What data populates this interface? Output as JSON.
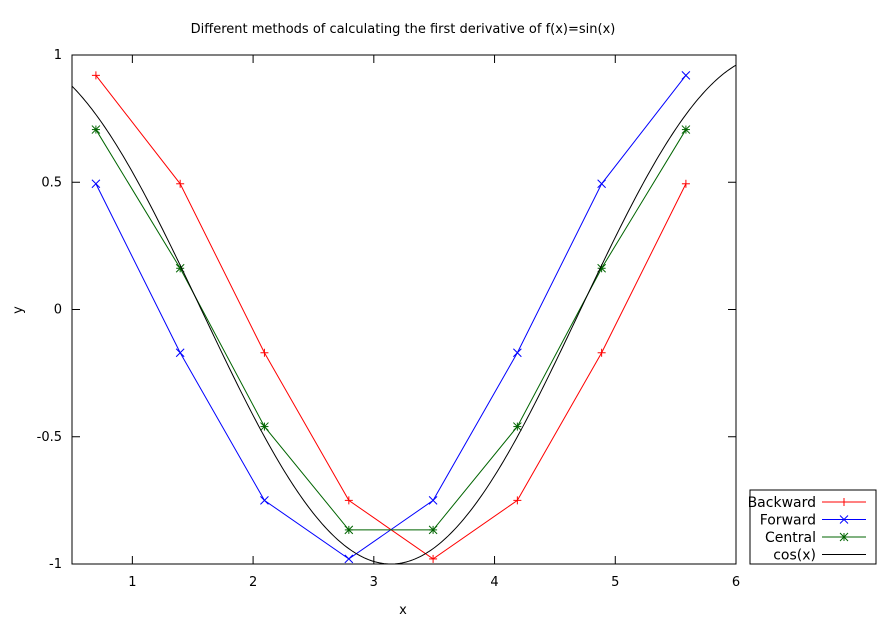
{
  "chart_data": {
    "type": "line",
    "title": "Different methods of calculating the first derivative of f(x)=sin(x)",
    "xlabel": "x",
    "ylabel": "y",
    "xlim": [
      0.5,
      6
    ],
    "ylim": [
      -1,
      1
    ],
    "x_ticks": [
      {
        "value": 1,
        "label": "1"
      },
      {
        "value": 2,
        "label": "2"
      },
      {
        "value": 3,
        "label": "3"
      },
      {
        "value": 4,
        "label": "4"
      },
      {
        "value": 5,
        "label": "5"
      },
      {
        "value": 6,
        "label": "6"
      }
    ],
    "y_ticks": [
      {
        "value": -1,
        "label": "-1"
      },
      {
        "value": -0.5,
        "label": "-0.5"
      },
      {
        "value": 0,
        "label": "0"
      },
      {
        "value": 0.5,
        "label": "0.5"
      },
      {
        "value": 1,
        "label": "1"
      }
    ],
    "grid": false,
    "legend_position": "bottom-right outside",
    "series": [
      {
        "name": "Backward",
        "color": "#ff0000",
        "marker": "plus",
        "x": [
          0.698,
          1.396,
          2.094,
          2.793,
          3.491,
          4.189,
          4.887,
          5.585
        ],
        "y": [
          0.92,
          0.494,
          -0.17,
          -0.75,
          -0.98,
          -0.75,
          -0.17,
          0.494
        ]
      },
      {
        "name": "Forward",
        "color": "#0000ff",
        "marker": "cross",
        "x": [
          0.698,
          1.396,
          2.094,
          2.793,
          3.491,
          4.189,
          4.887,
          5.585
        ],
        "y": [
          0.494,
          -0.17,
          -0.75,
          -0.98,
          -0.75,
          -0.17,
          0.494,
          0.92
        ]
      },
      {
        "name": "Central",
        "color": "#006400",
        "marker": "star",
        "x": [
          0.698,
          1.396,
          2.094,
          2.793,
          3.491,
          4.189,
          4.887,
          5.585
        ],
        "y": [
          0.707,
          0.162,
          -0.46,
          -0.866,
          -0.866,
          -0.46,
          0.162,
          0.707
        ]
      },
      {
        "name": "cos(x)",
        "color": "#000000",
        "marker": "none",
        "function": "cos",
        "x_range": [
          0.5,
          6
        ]
      }
    ]
  }
}
